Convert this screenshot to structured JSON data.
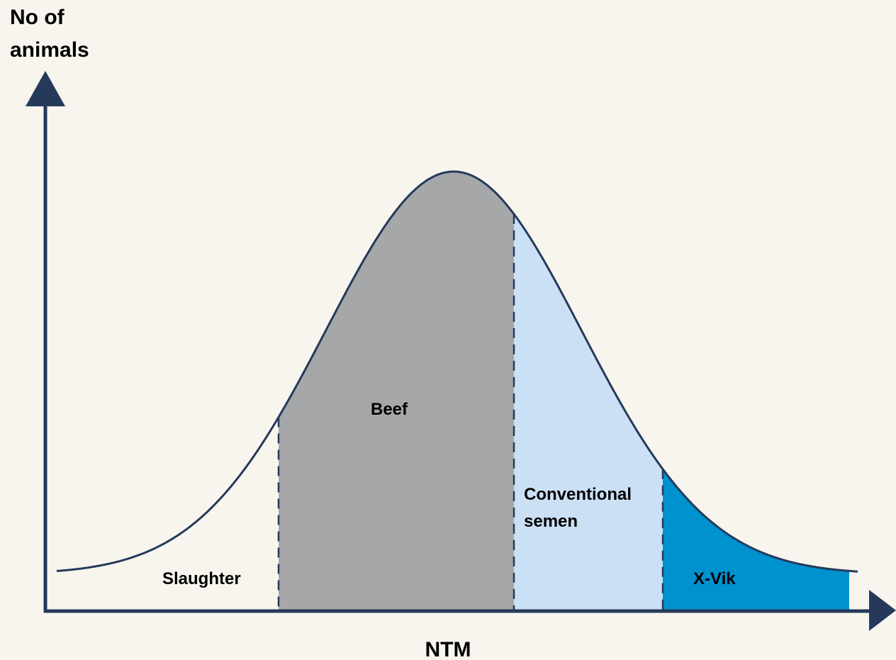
{
  "y_axis": {
    "label_lines": [
      "No of",
      "animals"
    ]
  },
  "x_axis": {
    "label": "NTM"
  },
  "regions": [
    {
      "label_lines": [
        "Slaughter"
      ]
    },
    {
      "label_lines": [
        "Beef"
      ]
    },
    {
      "label_lines": [
        "Conventional",
        "semen"
      ]
    },
    {
      "label_lines": [
        "X-Vik"
      ]
    }
  ]
}
